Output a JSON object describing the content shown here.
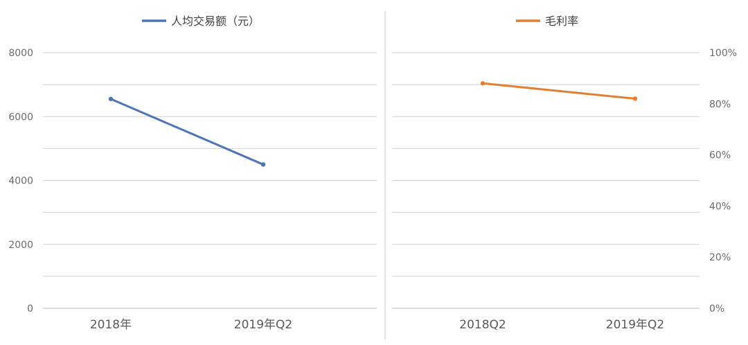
{
  "chart_data": [
    {
      "type": "line",
      "categories": [
        "2018年",
        "2019年Q2"
      ],
      "series": [
        {
          "name": "人均交易额（元）",
          "values": [
            6550,
            4500
          ],
          "color": "#4e75b8"
        }
      ],
      "ylim": [
        0,
        8000
      ],
      "yticks": [
        "0",
        "2000",
        "4000",
        "6000",
        "8000"
      ],
      "grid": true,
      "legend": "top"
    },
    {
      "type": "line",
      "categories": [
        "2018Q2",
        "2019年Q2"
      ],
      "series": [
        {
          "name": "毛利率",
          "values": [
            88,
            82
          ],
          "color": "#e37f32"
        }
      ],
      "ylim": [
        0,
        100
      ],
      "yticks": [
        "0%",
        "20%",
        "40%",
        "60%",
        "80%",
        "100%"
      ],
      "grid": true,
      "legend": "top",
      "y_axis_side": "right"
    }
  ]
}
